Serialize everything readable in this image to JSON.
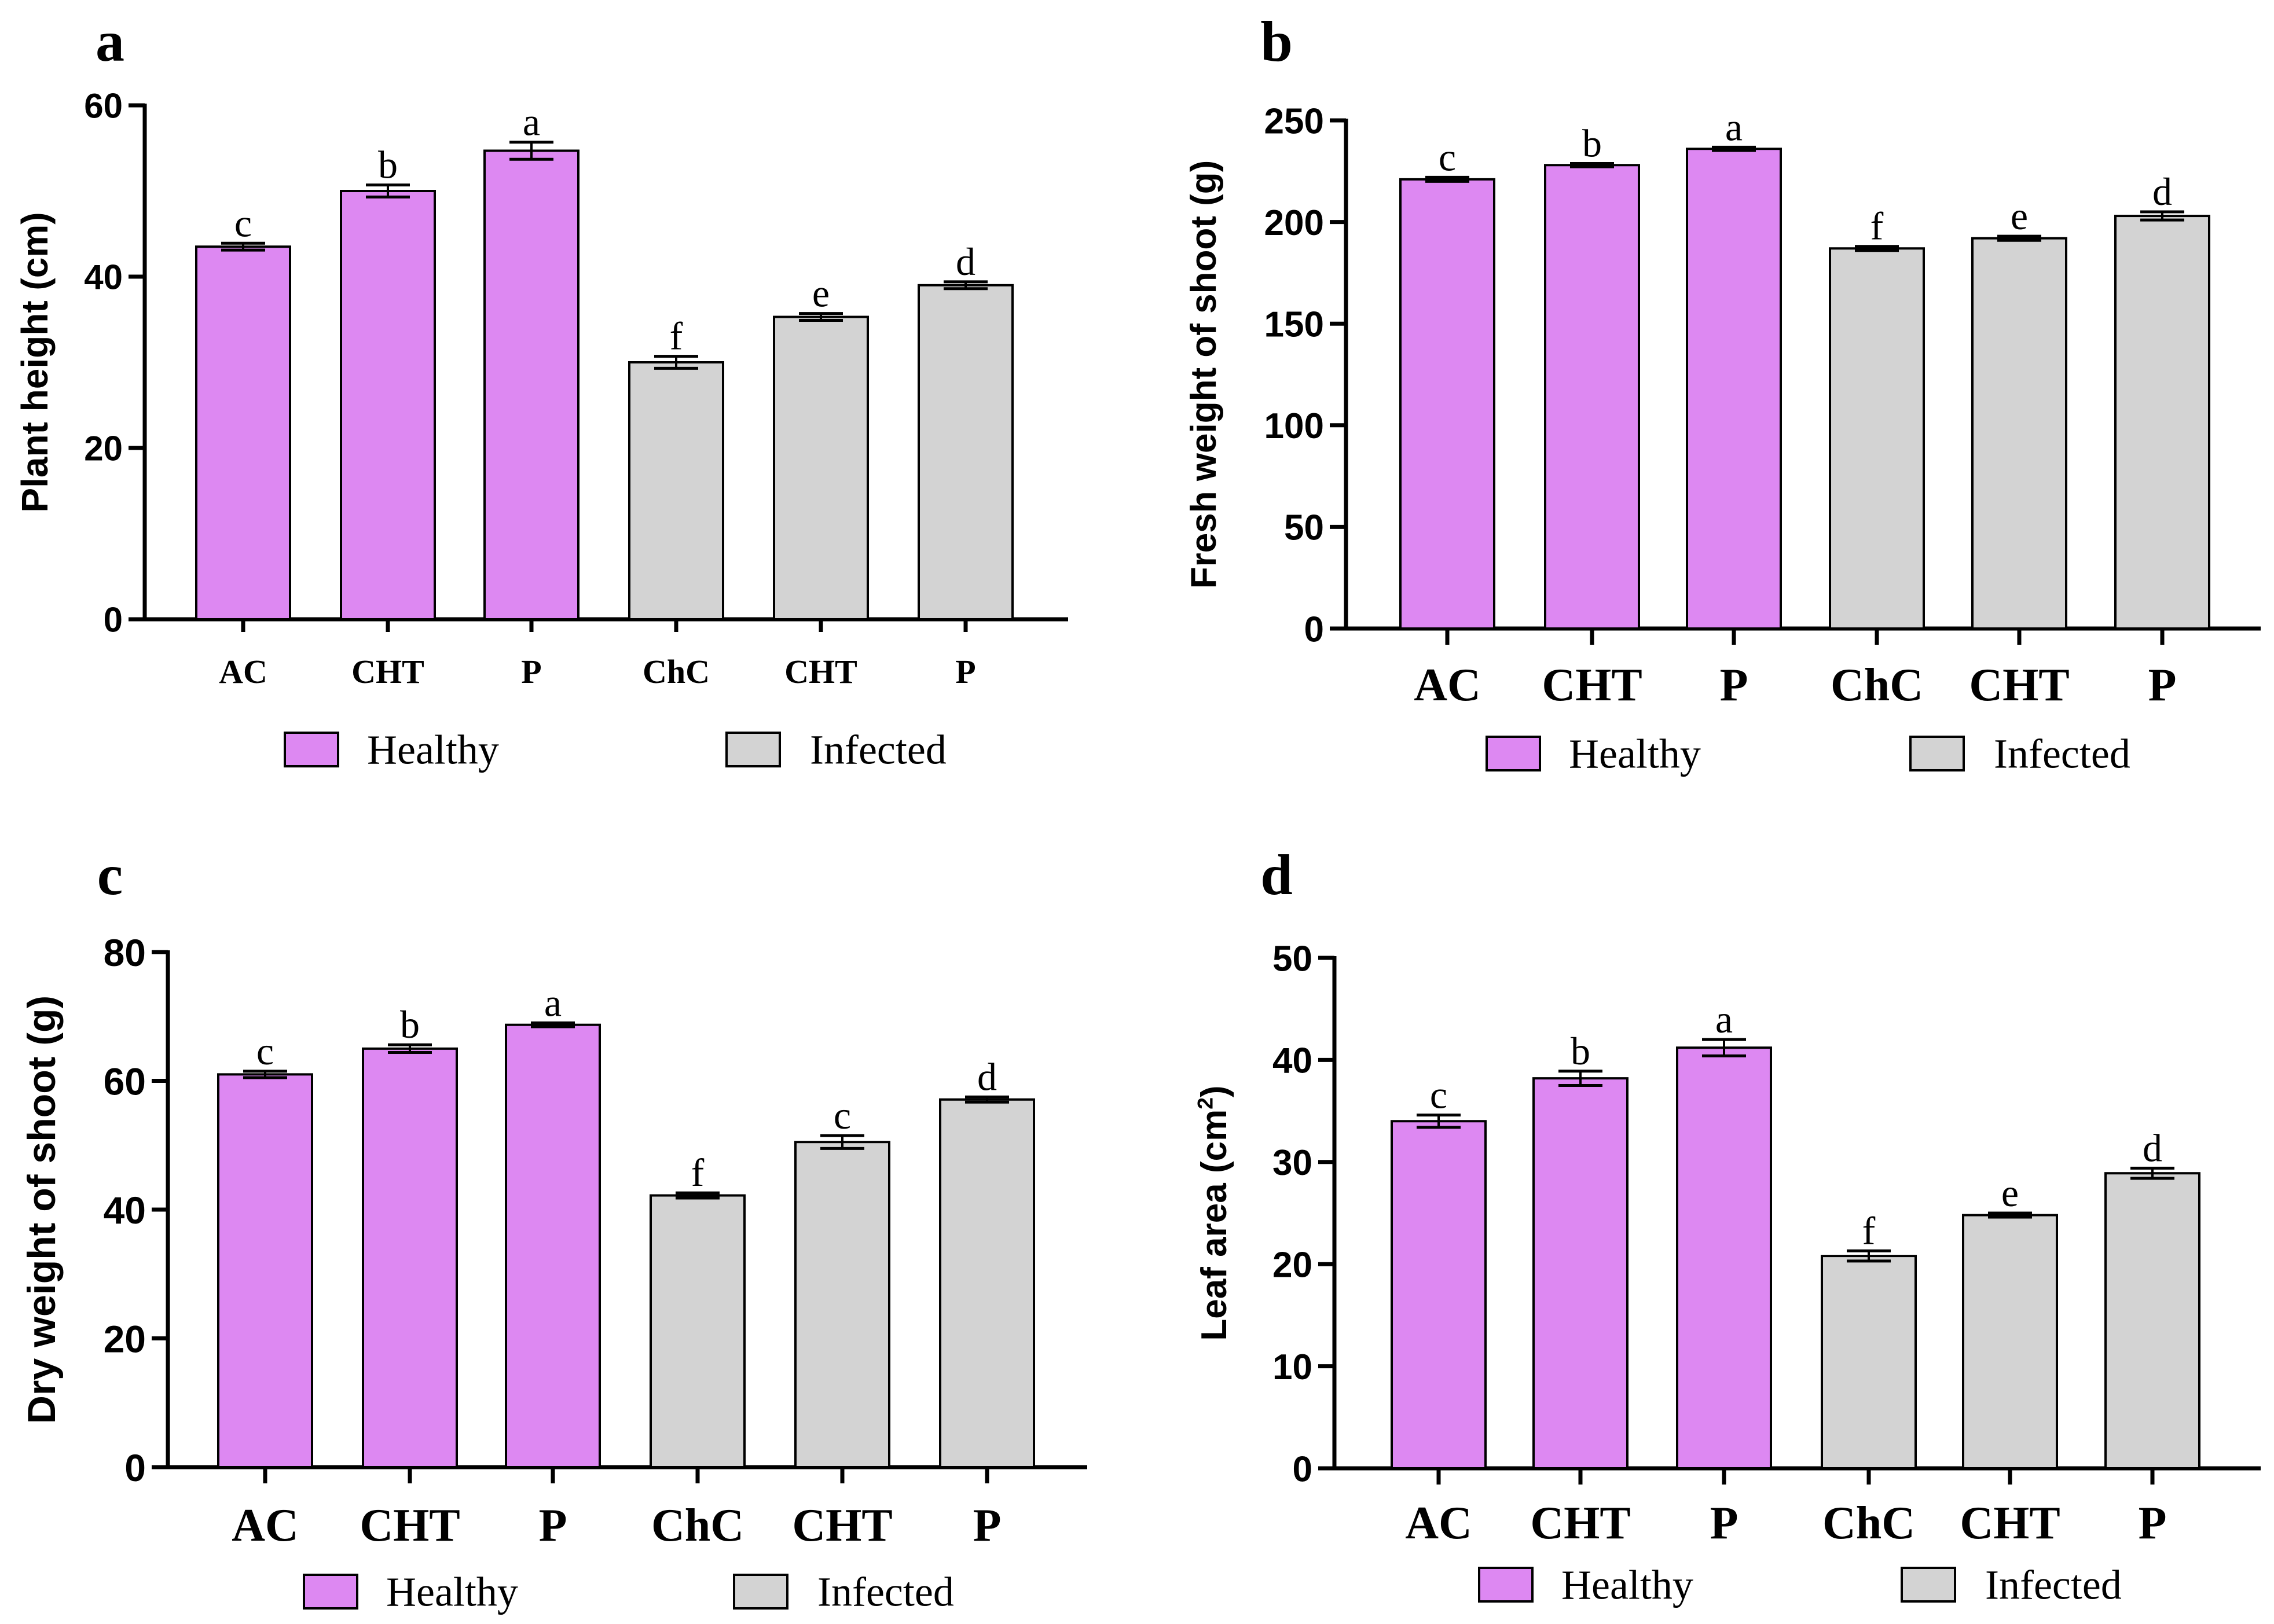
{
  "colors": {
    "healthy": "#dd88f2",
    "infected": "#d3d3d3",
    "axis": "#000000"
  },
  "legend": {
    "healthy": "Healthy",
    "infected": "Infected"
  },
  "chart_data": [
    {
      "panel": "a",
      "type": "bar",
      "ylabel": "Plant height (cm)",
      "ylim": [
        0,
        60
      ],
      "yticks": [
        0,
        20,
        40,
        60
      ],
      "categories": [
        "AC",
        "CHT",
        "P",
        "ChC",
        "CHT",
        "P"
      ],
      "groups": [
        "Healthy",
        "Healthy",
        "Healthy",
        "Infected",
        "Infected",
        "Infected"
      ],
      "values": [
        43.5,
        50,
        54.7,
        30,
        35.3,
        39
      ],
      "errors": [
        0.4,
        0.7,
        1.0,
        0.7,
        0.4,
        0.4
      ],
      "letters": [
        "c",
        "b",
        "a",
        "f",
        "e",
        "d"
      ]
    },
    {
      "panel": "b",
      "type": "bar",
      "ylabel": "Fresh weight of shoot (g)",
      "ylim": [
        0,
        250
      ],
      "yticks": [
        0,
        50,
        100,
        150,
        200,
        250
      ],
      "categories": [
        "AC",
        "CHT",
        "P",
        "ChC",
        "CHT",
        "P"
      ],
      "groups": [
        "Healthy",
        "Healthy",
        "Healthy",
        "Infected",
        "Infected",
        "Infected"
      ],
      "values": [
        221,
        228,
        236,
        187,
        192,
        203
      ],
      "errors": [
        1.0,
        0.8,
        0.8,
        1.0,
        1.0,
        2.0
      ],
      "letters": [
        "c",
        "b",
        "a",
        "f",
        "e",
        "d"
      ]
    },
    {
      "panel": "c",
      "type": "bar",
      "ylabel": "Dry weight of shoot (g)",
      "ylim": [
        0,
        80
      ],
      "yticks": [
        0,
        20,
        40,
        60,
        80
      ],
      "categories": [
        "AC",
        "CHT",
        "P",
        "ChC",
        "CHT",
        "P"
      ],
      "groups": [
        "Healthy",
        "Healthy",
        "Healthy",
        "Infected",
        "Infected",
        "Infected"
      ],
      "values": [
        61,
        65,
        68.7,
        42.2,
        50.5,
        57.1
      ],
      "errors": [
        0.5,
        0.6,
        0.3,
        0.4,
        1.0,
        0.4
      ],
      "letters": [
        "c",
        "b",
        "a",
        "f",
        "c",
        "d"
      ]
    },
    {
      "panel": "d",
      "type": "bar",
      "ylabel": "Leaf area (cm",
      "ylabel_sup": "2",
      "ylabel_close": ")",
      "ylim": [
        0,
        50
      ],
      "yticks": [
        0,
        10,
        20,
        30,
        40,
        50
      ],
      "categories": [
        "AC",
        "CHT",
        "P",
        "ChC",
        "CHT",
        "P"
      ],
      "groups": [
        "Healthy",
        "Healthy",
        "Healthy",
        "Infected",
        "Infected",
        "Infected"
      ],
      "values": [
        34,
        38.2,
        41.2,
        20.8,
        24.8,
        28.9
      ],
      "errors": [
        0.6,
        0.7,
        0.8,
        0.5,
        0.2,
        0.5
      ],
      "letters": [
        "c",
        "b",
        "a",
        "f",
        "e",
        "d"
      ]
    }
  ]
}
